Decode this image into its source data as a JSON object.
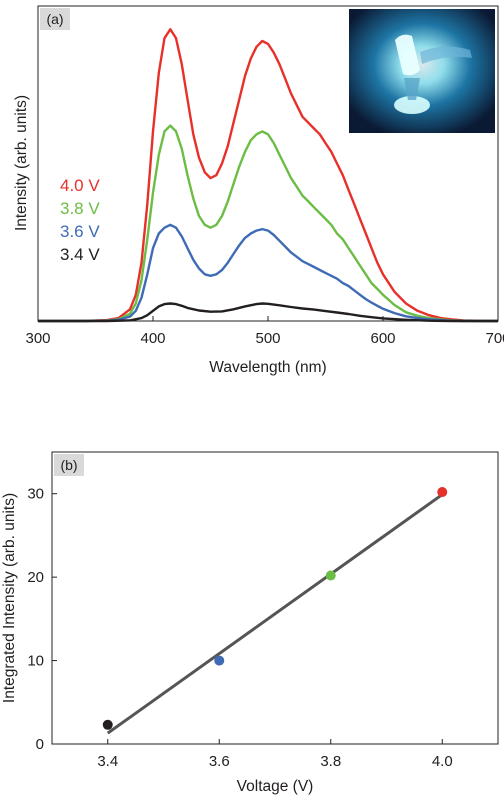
{
  "chart_data": [
    {
      "panel_label": "(a)",
      "type": "line",
      "xlabel": "Wavelength (nm)",
      "ylabel": "Intensity (arb. units)",
      "xlim": [
        300,
        700
      ],
      "ylim": [
        0,
        1.08
      ],
      "xticks": [
        300,
        400,
        500,
        600,
        700
      ],
      "y_tick_labels": false,
      "legend_position": "left-middle",
      "inset_image": "photo of glowing blue light-emitting device",
      "series": [
        {
          "name": "4.0 V",
          "color": "#e8302a",
          "x": [
            300,
            340,
            360,
            370,
            380,
            385,
            390,
            395,
            400,
            405,
            410,
            415,
            420,
            425,
            430,
            435,
            440,
            445,
            450,
            455,
            460,
            465,
            470,
            475,
            480,
            485,
            490,
            495,
            500,
            505,
            510,
            515,
            520,
            525,
            530,
            535,
            540,
            545,
            550,
            555,
            560,
            565,
            570,
            575,
            580,
            585,
            590,
            595,
            600,
            610,
            620,
            630,
            640,
            650,
            660,
            670,
            680,
            690,
            700
          ],
          "y": [
            0,
            0,
            0.003,
            0.01,
            0.04,
            0.09,
            0.2,
            0.4,
            0.65,
            0.85,
            0.97,
            1.0,
            0.97,
            0.88,
            0.76,
            0.64,
            0.56,
            0.51,
            0.49,
            0.5,
            0.54,
            0.6,
            0.68,
            0.76,
            0.84,
            0.9,
            0.94,
            0.96,
            0.95,
            0.92,
            0.88,
            0.83,
            0.78,
            0.74,
            0.7,
            0.68,
            0.66,
            0.64,
            0.61,
            0.58,
            0.54,
            0.5,
            0.45,
            0.4,
            0.35,
            0.3,
            0.25,
            0.2,
            0.16,
            0.1,
            0.06,
            0.035,
            0.02,
            0.01,
            0.005,
            0.002,
            0.001,
            0,
            0
          ]
        },
        {
          "name": "3.8 V",
          "color": "#6cbd45",
          "x": [
            300,
            340,
            360,
            370,
            380,
            385,
            390,
            395,
            400,
            405,
            410,
            415,
            420,
            425,
            430,
            435,
            440,
            445,
            450,
            455,
            460,
            465,
            470,
            475,
            480,
            485,
            490,
            495,
            500,
            505,
            510,
            515,
            520,
            525,
            530,
            535,
            540,
            545,
            550,
            555,
            560,
            565,
            570,
            575,
            580,
            585,
            590,
            595,
            600,
            610,
            620,
            630,
            640,
            650,
            660,
            670,
            680,
            690,
            700
          ],
          "y": [
            0,
            0,
            0.002,
            0.006,
            0.025,
            0.06,
            0.14,
            0.28,
            0.44,
            0.57,
            0.65,
            0.67,
            0.65,
            0.59,
            0.5,
            0.42,
            0.36,
            0.33,
            0.32,
            0.33,
            0.36,
            0.41,
            0.47,
            0.53,
            0.58,
            0.62,
            0.64,
            0.65,
            0.64,
            0.61,
            0.57,
            0.53,
            0.49,
            0.46,
            0.43,
            0.41,
            0.39,
            0.37,
            0.35,
            0.33,
            0.3,
            0.28,
            0.25,
            0.22,
            0.19,
            0.16,
            0.13,
            0.11,
            0.09,
            0.055,
            0.03,
            0.018,
            0.01,
            0.005,
            0.002,
            0.001,
            0,
            0,
            0
          ]
        },
        {
          "name": "3.6 V",
          "color": "#3f6bb5",
          "x": [
            300,
            340,
            360,
            370,
            380,
            385,
            390,
            395,
            400,
            405,
            410,
            415,
            420,
            425,
            430,
            435,
            440,
            445,
            450,
            455,
            460,
            465,
            470,
            475,
            480,
            485,
            490,
            495,
            500,
            505,
            510,
            515,
            520,
            525,
            530,
            535,
            540,
            545,
            550,
            555,
            560,
            565,
            570,
            575,
            580,
            585,
            590,
            595,
            600,
            610,
            620,
            630,
            640,
            650,
            660,
            670,
            680,
            690,
            700
          ],
          "y": [
            0,
            0,
            0.001,
            0.004,
            0.015,
            0.035,
            0.08,
            0.16,
            0.25,
            0.3,
            0.32,
            0.33,
            0.32,
            0.29,
            0.25,
            0.21,
            0.18,
            0.16,
            0.155,
            0.16,
            0.175,
            0.2,
            0.23,
            0.26,
            0.285,
            0.3,
            0.31,
            0.315,
            0.31,
            0.295,
            0.275,
            0.255,
            0.235,
            0.22,
            0.205,
            0.195,
            0.185,
            0.175,
            0.165,
            0.155,
            0.145,
            0.13,
            0.12,
            0.105,
            0.09,
            0.075,
            0.063,
            0.052,
            0.042,
            0.027,
            0.016,
            0.01,
            0.006,
            0.003,
            0.001,
            0,
            0,
            0,
            0
          ]
        },
        {
          "name": "3.4 V",
          "color": "#231f20",
          "x": [
            300,
            360,
            380,
            390,
            395,
            400,
            405,
            410,
            415,
            420,
            425,
            430,
            440,
            450,
            460,
            470,
            480,
            490,
            495,
            500,
            510,
            520,
            530,
            540,
            550,
            560,
            570,
            580,
            590,
            600,
            620,
            640,
            660,
            680,
            700
          ],
          "y": [
            0,
            0,
            0.002,
            0.01,
            0.02,
            0.035,
            0.05,
            0.058,
            0.06,
            0.058,
            0.052,
            0.045,
            0.036,
            0.032,
            0.033,
            0.04,
            0.05,
            0.058,
            0.06,
            0.059,
            0.054,
            0.048,
            0.043,
            0.039,
            0.034,
            0.029,
            0.024,
            0.018,
            0.013,
            0.009,
            0.004,
            0.001,
            0,
            0,
            0
          ]
        }
      ]
    },
    {
      "panel_label": "(b)",
      "type": "scatter",
      "xlabel": "Voltage (V)",
      "ylabel": "Integrated Intensity (arb. units)",
      "xlim": [
        3.3,
        4.1
      ],
      "ylim": [
        0,
        35
      ],
      "xticks": [
        3.4,
        3.6,
        3.8,
        4.0
      ],
      "xtick_labels": [
        "3.4",
        "3.6",
        "3.8",
        "4.0"
      ],
      "yticks": [
        0,
        10,
        20,
        30
      ],
      "points": [
        {
          "x": 3.4,
          "y": 2.3,
          "color": "#231f20"
        },
        {
          "x": 3.6,
          "y": 10.0,
          "color": "#3f6bb5"
        },
        {
          "x": 3.8,
          "y": 20.2,
          "color": "#6cbd45"
        },
        {
          "x": 4.0,
          "y": 30.2,
          "color": "#e8302a"
        }
      ],
      "fit_line": {
        "x": [
          3.4,
          4.0
        ],
        "y": [
          1.3,
          29.9
        ],
        "color": "#555555"
      }
    }
  ]
}
